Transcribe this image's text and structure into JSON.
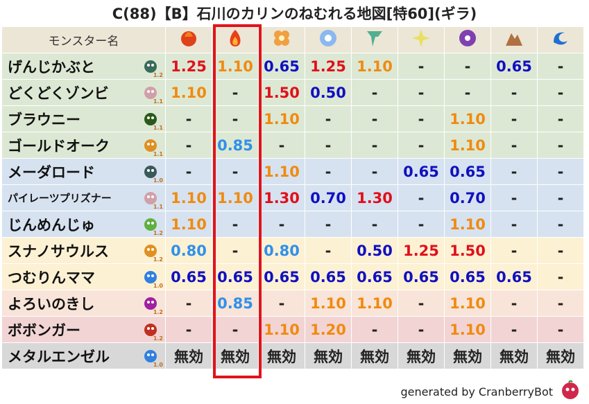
{
  "title": "C(88)【B】石川のカリンのねむれる地図[特60](ギラ)",
  "table": {
    "header": "モンスター名",
    "rows": [
      {
        "name": "げんじかぶと",
        "level": "1.2",
        "values": [
          "1.25",
          "1.10",
          "0.65",
          "1.25",
          "1.10",
          "-",
          "-",
          "0.65",
          "-"
        ]
      },
      {
        "name": "どくどくゾンビ",
        "level": "1.1",
        "values": [
          "1.10",
          "-",
          "1.50",
          "0.50",
          "-",
          "-",
          "-",
          "-",
          "-"
        ]
      },
      {
        "name": "ブラウニー",
        "level": "1.1",
        "values": [
          "-",
          "-",
          "1.10",
          "-",
          "-",
          "-",
          "1.10",
          "-",
          "-"
        ]
      },
      {
        "name": "ゴールドオーク",
        "level": "1.1",
        "values": [
          "-",
          "0.85",
          "-",
          "-",
          "-",
          "-",
          "1.10",
          "-",
          "-"
        ]
      },
      {
        "name": "メーダロード",
        "level": "1.0",
        "values": [
          "-",
          "-",
          "1.10",
          "-",
          "-",
          "0.65",
          "0.65",
          "-",
          "-"
        ]
      },
      {
        "name": "パイレーツプリズナー",
        "level": "1.1",
        "values": [
          "1.10",
          "1.10",
          "1.30",
          "0.70",
          "1.30",
          "-",
          "0.70",
          "-",
          "-"
        ]
      },
      {
        "name": "じんめんじゅ",
        "level": "1.2",
        "values": [
          "1.10",
          "-",
          "-",
          "-",
          "-",
          "-",
          "1.10",
          "-",
          "-"
        ]
      },
      {
        "name": "スナノサウルス",
        "level": "1.2",
        "values": [
          "0.80",
          "-",
          "0.80",
          "-",
          "0.50",
          "1.25",
          "1.50",
          "-",
          "-"
        ]
      },
      {
        "name": "つむりんママ",
        "level": "1.0",
        "values": [
          "0.65",
          "0.65",
          "0.65",
          "0.65",
          "0.65",
          "0.65",
          "0.65",
          "0.65",
          "-"
        ]
      },
      {
        "name": "よろいのきし",
        "level": "1.2",
        "values": [
          "-",
          "0.85",
          "-",
          "1.10",
          "1.10",
          "-",
          "1.10",
          "-",
          "-"
        ]
      },
      {
        "name": "ボボンガー",
        "level": "1.2",
        "values": [
          "-",
          "-",
          "1.10",
          "1.20",
          "-",
          "-",
          "1.10",
          "-",
          "-"
        ]
      },
      {
        "name": "メタルエンゼル",
        "level": "1.0",
        "values": [
          "無効",
          "無効",
          "無効",
          "無効",
          "無効",
          "無効",
          "無効",
          "無効",
          "無効"
        ]
      }
    ]
  },
  "footer": "generated by CranberryBot"
}
